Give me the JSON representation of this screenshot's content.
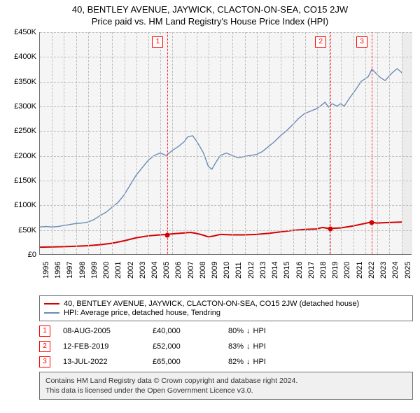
{
  "titles": {
    "address": "40, BENTLEY AVENUE, JAYWICK, CLACTON-ON-SEA, CO15 2JW",
    "subtitle": "Price paid vs. HM Land Registry's House Price Index (HPI)"
  },
  "chart": {
    "type": "line",
    "background_color": "#f5f5f5",
    "grid_color": "#bdbdbd",
    "axis_color": "#707070",
    "tick_fontsize": 11,
    "title_fontsize": 13,
    "ylim": [
      0,
      450000
    ],
    "ytick_step": 50000,
    "ytick_labels": [
      "£0",
      "£50K",
      "£100K",
      "£150K",
      "£200K",
      "£250K",
      "£300K",
      "£350K",
      "£400K",
      "£450K"
    ],
    "xlim": [
      1995,
      2025.9
    ],
    "xtick_step": 1,
    "xtick_labels": [
      "1995",
      "1996",
      "1997",
      "1998",
      "1999",
      "2000",
      "2001",
      "2002",
      "2003",
      "2004",
      "2005",
      "2006",
      "2007",
      "2008",
      "2009",
      "2010",
      "2011",
      "2012",
      "2013",
      "2014",
      "2015",
      "2016",
      "2017",
      "2018",
      "2019",
      "2020",
      "2021",
      "2022",
      "2023",
      "2024",
      "2025"
    ],
    "band": {
      "start": 2025.0,
      "end": 2025.9,
      "color": "#ececec"
    },
    "vrefs": [
      {
        "n": "1",
        "x": 2005.6
      },
      {
        "n": "2",
        "x": 2019.12
      },
      {
        "n": "3",
        "x": 2022.53
      }
    ],
    "series": [
      {
        "name": "HPI: Average price, detached house, Tendring",
        "color": "#6b8bb7",
        "width": 1.4,
        "points": [
          [
            1995.0,
            55000
          ],
          [
            1995.5,
            56000
          ],
          [
            1996.0,
            55000
          ],
          [
            1996.5,
            56000
          ],
          [
            1997.0,
            58000
          ],
          [
            1997.5,
            60000
          ],
          [
            1998.0,
            62000
          ],
          [
            1998.5,
            63000
          ],
          [
            1999.0,
            65000
          ],
          [
            1999.5,
            70000
          ],
          [
            2000.0,
            78000
          ],
          [
            2000.5,
            85000
          ],
          [
            2001.0,
            95000
          ],
          [
            2001.5,
            105000
          ],
          [
            2002.0,
            120000
          ],
          [
            2002.5,
            140000
          ],
          [
            2003.0,
            160000
          ],
          [
            2003.5,
            175000
          ],
          [
            2004.0,
            190000
          ],
          [
            2004.5,
            200000
          ],
          [
            2005.0,
            205000
          ],
          [
            2005.5,
            200000
          ],
          [
            2006.0,
            210000
          ],
          [
            2006.5,
            218000
          ],
          [
            2007.0,
            228000
          ],
          [
            2007.3,
            238000
          ],
          [
            2007.7,
            240000
          ],
          [
            2008.0,
            230000
          ],
          [
            2008.3,
            218000
          ],
          [
            2008.6,
            205000
          ],
          [
            2009.0,
            178000
          ],
          [
            2009.3,
            172000
          ],
          [
            2009.6,
            185000
          ],
          [
            2010.0,
            200000
          ],
          [
            2010.5,
            205000
          ],
          [
            2011.0,
            200000
          ],
          [
            2011.5,
            195000
          ],
          [
            2012.0,
            198000
          ],
          [
            2012.5,
            200000
          ],
          [
            2013.0,
            202000
          ],
          [
            2013.5,
            208000
          ],
          [
            2014.0,
            218000
          ],
          [
            2014.5,
            228000
          ],
          [
            2015.0,
            240000
          ],
          [
            2015.5,
            250000
          ],
          [
            2016.0,
            262000
          ],
          [
            2016.5,
            275000
          ],
          [
            2017.0,
            285000
          ],
          [
            2017.5,
            290000
          ],
          [
            2018.0,
            295000
          ],
          [
            2018.3,
            300000
          ],
          [
            2018.7,
            308000
          ],
          [
            2019.0,
            298000
          ],
          [
            2019.3,
            305000
          ],
          [
            2019.7,
            300000
          ],
          [
            2020.0,
            305000
          ],
          [
            2020.3,
            300000
          ],
          [
            2020.7,
            315000
          ],
          [
            2021.0,
            325000
          ],
          [
            2021.3,
            335000
          ],
          [
            2021.7,
            350000
          ],
          [
            2022.0,
            355000
          ],
          [
            2022.3,
            360000
          ],
          [
            2022.6,
            375000
          ],
          [
            2023.0,
            365000
          ],
          [
            2023.3,
            358000
          ],
          [
            2023.7,
            352000
          ],
          [
            2024.0,
            360000
          ],
          [
            2024.3,
            368000
          ],
          [
            2024.7,
            376000
          ],
          [
            2025.0,
            370000
          ],
          [
            2025.3,
            362000
          ],
          [
            2025.6,
            370000
          ]
        ]
      },
      {
        "name": "40, BENTLEY AVENUE, JAYWICK, CLACTON-ON-SEA, CO15 2JW (detached house)",
        "color": "#d40000",
        "width": 2,
        "points": [
          [
            1995.0,
            14000
          ],
          [
            1996.0,
            14500
          ],
          [
            1997.0,
            15000
          ],
          [
            1998.0,
            16000
          ],
          [
            1999.0,
            17000
          ],
          [
            2000.0,
            19000
          ],
          [
            2001.0,
            22000
          ],
          [
            2002.0,
            27000
          ],
          [
            2003.0,
            33000
          ],
          [
            2004.0,
            37000
          ],
          [
            2005.0,
            39000
          ],
          [
            2005.6,
            40000
          ],
          [
            2006.0,
            41000
          ],
          [
            2007.0,
            43000
          ],
          [
            2007.5,
            44000
          ],
          [
            2008.0,
            42000
          ],
          [
            2008.5,
            39000
          ],
          [
            2009.0,
            35000
          ],
          [
            2009.5,
            37000
          ],
          [
            2010.0,
            40000
          ],
          [
            2011.0,
            39000
          ],
          [
            2012.0,
            39000
          ],
          [
            2013.0,
            40000
          ],
          [
            2014.0,
            42000
          ],
          [
            2015.0,
            45000
          ],
          [
            2016.0,
            48000
          ],
          [
            2017.0,
            50000
          ],
          [
            2018.0,
            51000
          ],
          [
            2018.5,
            54000
          ],
          [
            2019.0,
            52000
          ],
          [
            2019.12,
            52000
          ],
          [
            2020.0,
            53000
          ],
          [
            2021.0,
            57000
          ],
          [
            2022.0,
            62000
          ],
          [
            2022.53,
            65000
          ],
          [
            2023.0,
            63000
          ],
          [
            2024.0,
            64000
          ],
          [
            2025.0,
            65000
          ],
          [
            2025.6,
            65000
          ]
        ]
      }
    ],
    "markers": [
      {
        "x": 2005.6,
        "y": 40000,
        "color": "#d40000"
      },
      {
        "x": 2019.12,
        "y": 52000,
        "color": "#d40000"
      },
      {
        "x": 2022.53,
        "y": 65000,
        "color": "#d40000"
      }
    ]
  },
  "legend": {
    "items": [
      {
        "color": "#d40000",
        "label": "40, BENTLEY AVENUE, JAYWICK, CLACTON-ON-SEA, CO15 2JW (detached house)"
      },
      {
        "color": "#6b8bb7",
        "label": "HPI: Average price, detached house, Tendring"
      }
    ]
  },
  "events": [
    {
      "n": "1",
      "date": "08-AUG-2005",
      "price": "£40,000",
      "delta_pct": "80%",
      "delta_dir": "↓",
      "delta_label": "HPI"
    },
    {
      "n": "2",
      "date": "12-FEB-2019",
      "price": "£52,000",
      "delta_pct": "83%",
      "delta_dir": "↓",
      "delta_label": "HPI"
    },
    {
      "n": "3",
      "date": "13-JUL-2022",
      "price": "£65,000",
      "delta_pct": "82%",
      "delta_dir": "↓",
      "delta_label": "HPI"
    }
  ],
  "footer": {
    "line1": "Contains HM Land Registry data © Crown copyright and database right 2024.",
    "line2": "This data is licensed under the Open Government Licence v3.0."
  }
}
